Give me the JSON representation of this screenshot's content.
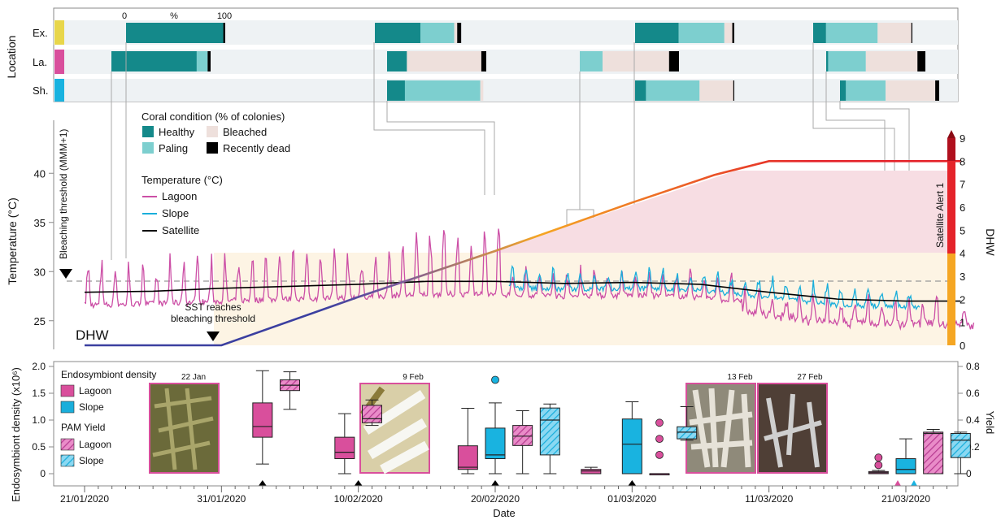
{
  "colors": {
    "healthy": "#14898a",
    "paling": "#7dcfcf",
    "bleached": "#eee0dc",
    "dead": "#000000",
    "lagoon": "#cc4fa6",
    "slope": "#1aaedb",
    "satellite": "#000000",
    "band": "#eef2f4",
    "ex": "#e8d64a",
    "la": "#d94f9c",
    "sh": "#19b3e0",
    "dhw_blue": "#3b3fa0",
    "dhw_orange": "#f5a623",
    "dhw_red": "#e4232a",
    "alert1_fill": "#fdf4e4",
    "alert2_fill": "#f7dde3"
  },
  "chart_data": [
    {
      "type": "bar",
      "orientation": "horizontal-stacked",
      "title": "Location",
      "axis_label_top": [
        "0",
        "%",
        "100"
      ],
      "locations": [
        "Ex.",
        "La.",
        "Sh."
      ],
      "legend_title": "Coral condition (% of colonies)",
      "legend": [
        "Healthy",
        "Paling",
        "Bleached",
        "Recently dead"
      ],
      "surveys": [
        {
          "location": "Ex.",
          "date": "2020-01-23",
          "values": [
            98,
            0,
            0,
            2
          ]
        },
        {
          "location": "Ex.",
          "date": "2020-02-12",
          "values": [
            46,
            34,
            3,
            4
          ]
        },
        {
          "location": "Ex.",
          "date": "2020-03-03",
          "values": [
            44,
            46,
            8,
            2
          ]
        },
        {
          "location": "Ex.",
          "date": "2020-03-17",
          "values": [
            13,
            52,
            34,
            1
          ]
        },
        {
          "location": "La.",
          "date": "2020-01-22",
          "values": [
            86,
            11,
            0,
            3
          ]
        },
        {
          "location": "La.",
          "date": "2020-02-12",
          "values": [
            20,
            0,
            75,
            5
          ]
        },
        {
          "location": "La.",
          "date": "2020-02-27",
          "values": [
            0,
            23,
            67,
            10
          ]
        },
        {
          "location": "La.",
          "date": "2020-03-19",
          "values": [
            2,
            38,
            52,
            8
          ]
        },
        {
          "location": "Sh.",
          "date": "2020-02-12",
          "values": [
            18,
            76,
            3,
            0
          ]
        },
        {
          "location": "Sh.",
          "date": "2020-03-03",
          "values": [
            11,
            54,
            34,
            1
          ]
        },
        {
          "location": "Sh.",
          "date": "2020-03-19",
          "values": [
            6,
            40,
            50,
            4
          ]
        }
      ]
    },
    {
      "type": "line",
      "xlabel": "Date",
      "ylabel": "Temperature (°C)",
      "ylim": [
        22.5,
        42.5
      ],
      "y_ticks": [
        "25",
        "30",
        "35",
        "40"
      ],
      "y2label": "DHW",
      "y2lim": [
        0,
        9
      ],
      "y2_ticks": [
        "0",
        "1",
        "2",
        "3",
        "4",
        "5",
        "6",
        "7",
        "8",
        "9"
      ],
      "threshold_label": "Bleaching threshold (MMM+1)",
      "threshold_value": 28.2,
      "alert_label": "Satellite Alert 1",
      "dhw_label": "DHW",
      "annotation": "SST reaches\nbleaching threshold",
      "annotation_date": "2020-01-31",
      "legend_title": "Temperature (°C)",
      "series": [
        {
          "name": "Lagoon",
          "x_start": "2020-01-21",
          "x_end": "2020-03-26",
          "range": [
            23.0,
            38.5
          ]
        },
        {
          "name": "Slope",
          "x_start": "2020-02-21",
          "x_end": "2020-03-22",
          "range": [
            24.5,
            31.5
          ]
        },
        {
          "name": "Satellite",
          "x": [
            "2020-01-21",
            "2020-01-26",
            "2020-01-31",
            "2020-02-05",
            "2020-02-10",
            "2020-02-15",
            "2020-02-20",
            "2020-02-25",
            "2020-03-01",
            "2020-03-06",
            "2020-03-11",
            "2020-03-16",
            "2020-03-21",
            "2020-03-25"
          ],
          "values": [
            27.9,
            28.0,
            28.3,
            28.5,
            28.7,
            29.0,
            29.0,
            28.8,
            28.9,
            28.7,
            27.9,
            27.2,
            27.0,
            27.0
          ]
        },
        {
          "name": "DHW",
          "x": [
            "2020-01-21",
            "2020-01-31",
            "2020-02-10",
            "2020-02-20",
            "2020-03-01",
            "2020-03-07",
            "2020-03-11",
            "2020-03-25"
          ],
          "values": [
            0.0,
            0.0,
            2.1,
            4.1,
            6.2,
            7.4,
            8.0,
            8.0
          ]
        }
      ]
    },
    {
      "type": "box",
      "xlabel": "Date",
      "ylabel": "Endosymbiont density (x10⁶)",
      "ylim": [
        -0.1,
        2.0
      ],
      "y_ticks": [
        "0",
        "0.5",
        "1.0",
        "1.5",
        "2.0"
      ],
      "y2label": "Yield",
      "y2lim": [
        -0.04,
        0.8
      ],
      "y2_ticks": [
        "0",
        "0.2",
        "0.4",
        "0.6",
        "0.8"
      ],
      "legend": [
        "Endosymbiont density",
        "Lagoon",
        "Slope",
        "PAM Yield",
        "Lagoon",
        "Slope"
      ],
      "photo_labels": [
        "22 Jan",
        "9 Feb",
        "13 Feb",
        "27 Feb"
      ],
      "x_ticks": [
        "21/01/2020",
        "31/01/2020",
        "10/02/2020",
        "20/02/2020",
        "01/03/2020",
        "11/03/2020",
        "21/03/2020"
      ],
      "sample_markers": [
        "2020-02-03",
        "2020-02-10",
        "2020-02-20",
        "2020-03-01",
        "2020-03-21"
      ],
      "boxes": [
        {
          "series": "Lagoon density",
          "date": "2020-02-03",
          "min": 0.18,
          "q1": 0.68,
          "median": 0.88,
          "q3": 1.32,
          "max": 1.92
        },
        {
          "series": "Lagoon yield",
          "date": "2020-02-05",
          "min": 0.48,
          "q1": 0.62,
          "median": 0.66,
          "q3": 0.7,
          "max": 0.76
        },
        {
          "series": "Lagoon density",
          "date": "2020-02-09",
          "min": 0.0,
          "q1": 0.28,
          "median": 0.4,
          "q3": 0.68,
          "max": 1.12
        },
        {
          "series": "Lagoon yield",
          "date": "2020-02-11",
          "min": 0.36,
          "q1": 0.38,
          "median": 0.41,
          "q3": 0.51,
          "max": 0.55
        },
        {
          "series": "Lagoon density",
          "date": "2020-02-18",
          "min": 0.0,
          "q1": 0.08,
          "median": 0.12,
          "q3": 0.52,
          "max": 1.22
        },
        {
          "series": "Slope density",
          "date": "2020-02-20",
          "min": 0.0,
          "q1": 0.28,
          "median": 0.35,
          "q3": 0.85,
          "max": 1.32,
          "outliers": [
            1.75
          ]
        },
        {
          "series": "Lagoon yield",
          "date": "2020-02-22",
          "min": 0.0,
          "q1": 0.21,
          "median": 0.28,
          "q3": 0.36,
          "max": 0.47
        },
        {
          "series": "Slope yield",
          "date": "2020-02-24",
          "min": 0.0,
          "q1": 0.14,
          "median": 0.4,
          "q3": 0.49,
          "max": 0.52
        },
        {
          "series": "Lagoon density",
          "date": "2020-02-27",
          "min": 0.0,
          "q1": 0.0,
          "median": 0.05,
          "q3": 0.08,
          "max": 0.12
        },
        {
          "series": "Slope density",
          "date": "2020-03-01",
          "min": 0.0,
          "q1": 0.0,
          "median": 0.55,
          "q3": 1.02,
          "max": 1.34
        },
        {
          "series": "Lagoon density",
          "date": "2020-03-03",
          "min": 0.0,
          "q1": 0.0,
          "median": 0.0,
          "q3": 0.0,
          "max": 0.0,
          "outliers": [
            0.35,
            0.65,
            0.95
          ]
        },
        {
          "series": "Slope yield",
          "date": "2020-03-05",
          "min": 0.25,
          "q1": 0.26,
          "median": 0.31,
          "q3": 0.35,
          "max": 0.5
        },
        {
          "series": "Lagoon density",
          "date": "2020-03-19",
          "min": 0.0,
          "q1": 0.0,
          "median": 0.02,
          "q3": 0.04,
          "max": 0.06,
          "outliers": [
            0.16,
            0.3
          ]
        },
        {
          "series": "Slope density",
          "date": "2020-03-21",
          "min": 0.0,
          "q1": 0.0,
          "median": 0.08,
          "q3": 0.28,
          "max": 0.65
        },
        {
          "series": "Lagoon yield",
          "date": "2020-03-23",
          "min": 0.0,
          "q1": 0.0,
          "median": 0.3,
          "q3": 0.31,
          "max": 0.33
        },
        {
          "series": "Slope yield",
          "date": "2020-03-25",
          "min": 0.0,
          "q1": 0.12,
          "median": 0.25,
          "q3": 0.3,
          "max": 0.31
        }
      ]
    }
  ]
}
